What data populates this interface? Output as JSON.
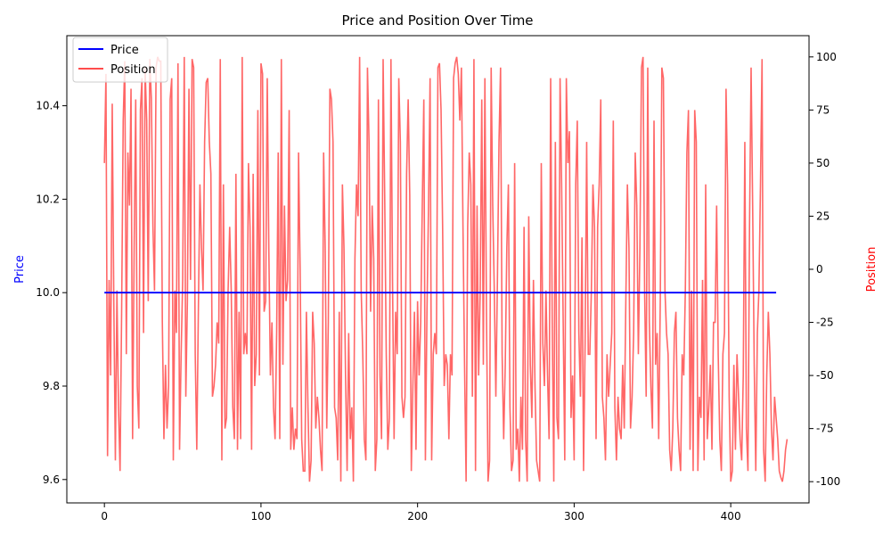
{
  "chart_data": {
    "type": "line",
    "title": "Price and Position Over Time",
    "xlabel": "",
    "x_ticks": [
      "0",
      "100",
      "200",
      "300",
      "400"
    ],
    "x_range": [
      -24,
      450
    ],
    "left_axis": {
      "label": "Price",
      "label_color": "#0000ff",
      "range": [
        9.55,
        10.55
      ],
      "ticks": [
        "9.6",
        "9.8",
        "10.0",
        "10.2",
        "10.4"
      ]
    },
    "right_axis": {
      "label": "Position",
      "label_color": "#ff0000",
      "range": [
        -110,
        110
      ],
      "ticks": [
        "-100",
        "-75",
        "-50",
        "-25",
        "0",
        "25",
        "50",
        "75",
        "100"
      ]
    },
    "legend": {
      "placement": "top-left",
      "entries": [
        "Price",
        "Position"
      ]
    },
    "series": [
      {
        "name": "Price",
        "axis": "left",
        "color": "#0000ff",
        "x_start": 0,
        "x_end": 429,
        "values": [
          10.0,
          10.0
        ]
      },
      {
        "name": "Position",
        "axis": "right",
        "color": "#ff4c4c",
        "x_start": 0,
        "x_step": 1,
        "values": [
          50,
          92,
          -88,
          -5,
          -50,
          78,
          -15,
          -90,
          -10,
          -65,
          -95,
          -20,
          70,
          98,
          -40,
          55,
          30,
          85,
          -80,
          10,
          80,
          -55,
          -75,
          75,
          90,
          -30,
          95,
          70,
          -15,
          99,
          80,
          20,
          -10,
          95,
          100,
          98,
          98,
          -25,
          -80,
          -45,
          -75,
          -55,
          80,
          90,
          -90,
          -10,
          -30,
          97,
          -85,
          -40,
          -5,
          100,
          -60,
          -15,
          85,
          -5,
          99,
          95,
          -40,
          -85,
          -20,
          40,
          10,
          -10,
          60,
          88,
          90,
          60,
          45,
          -60,
          -55,
          -45,
          -25,
          -35,
          99,
          -90,
          40,
          -75,
          -70,
          -10,
          20,
          -10,
          -65,
          -80,
          45,
          -85,
          -20,
          -80,
          100,
          -40,
          -30,
          -40,
          50,
          20,
          -85,
          45,
          -55,
          -40,
          75,
          -50,
          97,
          92,
          -20,
          -15,
          90,
          10,
          -50,
          -25,
          -65,
          -80,
          -30,
          55,
          -80,
          99,
          -45,
          30,
          -15,
          -5,
          75,
          -85,
          -65,
          -85,
          -75,
          -80,
          55,
          0,
          -80,
          -95,
          -95,
          -20,
          -65,
          -100,
          -90,
          -20,
          -35,
          -75,
          -60,
          -70,
          -85,
          -95,
          55,
          10,
          -75,
          -25,
          85,
          80,
          60,
          -65,
          -70,
          -90,
          -20,
          -100,
          40,
          10,
          -50,
          -95,
          -30,
          -80,
          -65,
          -100,
          5,
          40,
          25,
          100,
          -10,
          -40,
          -80,
          -90,
          95,
          60,
          -20,
          30,
          5,
          -95,
          -80,
          80,
          -50,
          -80,
          99,
          35,
          -40,
          -85,
          -70,
          99,
          -5,
          -80,
          -20,
          -40,
          90,
          60,
          -60,
          -70,
          -60,
          45,
          80,
          35,
          -95,
          -55,
          -20,
          -85,
          -15,
          -50,
          -25,
          30,
          80,
          -90,
          -20,
          30,
          90,
          -90,
          -40,
          -30,
          -40,
          95,
          97,
          75,
          20,
          -55,
          -40,
          -45,
          -80,
          -40,
          -50,
          90,
          97,
          100,
          92,
          70,
          95,
          20,
          -45,
          -100,
          20,
          55,
          40,
          -60,
          99,
          -95,
          30,
          -50,
          -10,
          80,
          -45,
          90,
          -20,
          -100,
          -90,
          95,
          30,
          -10,
          -60,
          -5,
          60,
          95,
          -40,
          -80,
          -45,
          10,
          40,
          -65,
          -95,
          -90,
          50,
          -85,
          -75,
          -100,
          -60,
          -85,
          20,
          -80,
          -100,
          25,
          -45,
          -70,
          -5,
          -55,
          -90,
          -95,
          -100,
          50,
          -35,
          -55,
          -10,
          -50,
          -80,
          90,
          -25,
          -100,
          60,
          -70,
          -80,
          90,
          40,
          -25,
          -90,
          90,
          50,
          65,
          -70,
          -50,
          -90,
          40,
          70,
          -30,
          -60,
          15,
          -95,
          -35,
          60,
          -40,
          -40,
          -10,
          40,
          20,
          -80,
          20,
          40,
          80,
          -60,
          -70,
          -90,
          -40,
          -60,
          -45,
          -30,
          70,
          -65,
          -90,
          -60,
          -75,
          -80,
          -45,
          -75,
          -15,
          40,
          10,
          -75,
          -60,
          -30,
          55,
          30,
          -40,
          10,
          95,
          100,
          -10,
          -60,
          95,
          -25,
          -55,
          -75,
          70,
          -45,
          -30,
          -80,
          -15,
          95,
          90,
          -10,
          -30,
          -40,
          -85,
          -95,
          -75,
          -30,
          -20,
          -70,
          -85,
          -95,
          -40,
          -50,
          -10,
          55,
          75,
          -85,
          -10,
          -95,
          75,
          60,
          -95,
          -60,
          -70,
          -5,
          -90,
          40,
          -80,
          -65,
          -45,
          -85,
          -25,
          -25,
          30,
          -40,
          -80,
          -95,
          -40,
          -30,
          85,
          40,
          -60,
          -100,
          -95,
          -45,
          -85,
          -40,
          -60,
          -80,
          -90,
          -50,
          60,
          -75,
          -95,
          20,
          95,
          30,
          -45,
          -95,
          -30,
          -10,
          40,
          99,
          -85,
          -100,
          -50,
          -20,
          -40,
          -75,
          -90,
          -60,
          -70,
          -80,
          -95,
          -98,
          -100,
          -95,
          -85,
          -80
        ]
      }
    ]
  }
}
